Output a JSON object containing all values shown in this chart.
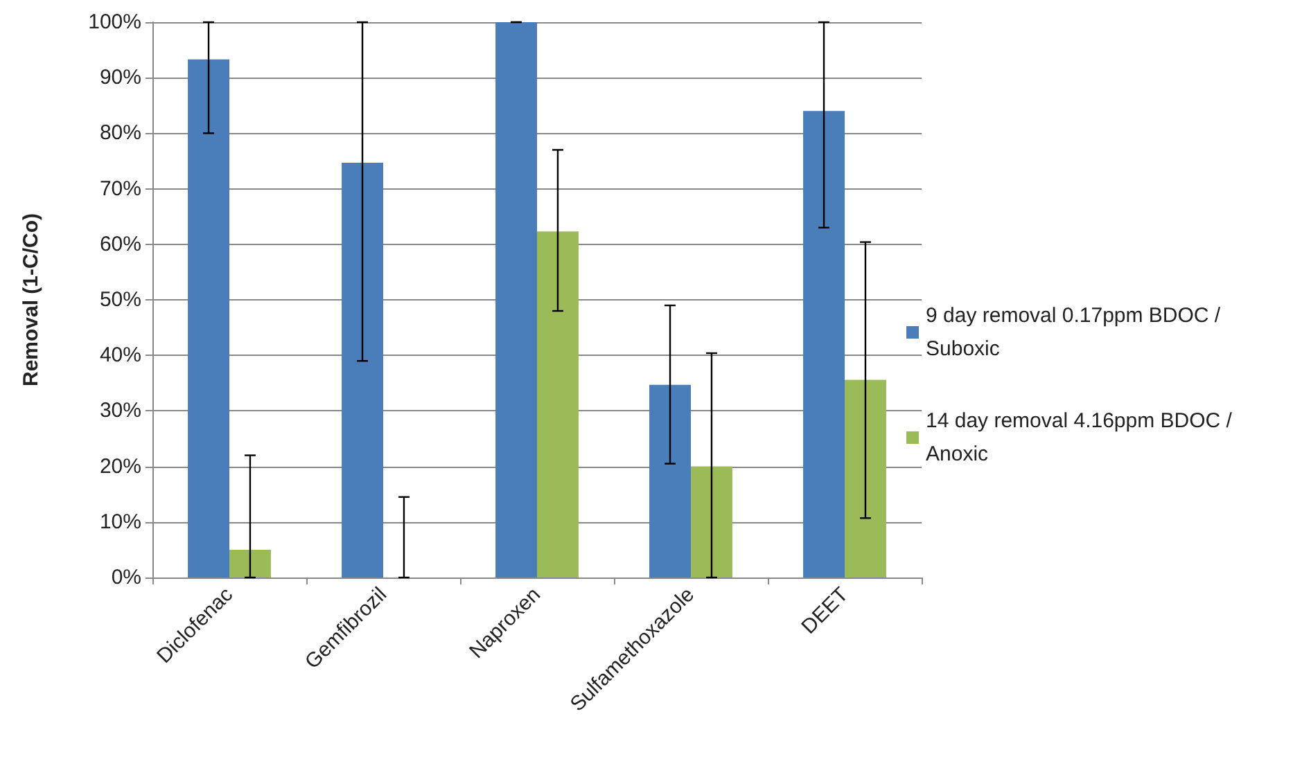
{
  "chart_data": {
    "type": "bar",
    "ylabel": "Removal (1-C/Co)",
    "categories": [
      "Diclofenac",
      "Gemfibrozil",
      "Naproxen",
      "Sulfamethoxazole",
      "DEET"
    ],
    "series": [
      {
        "name": "9 day removal 0.17ppm BDOC / Suboxic",
        "color": "#4a7ebb",
        "values": [
          93.3,
          74.7,
          100,
          34.7,
          84
        ],
        "errors": [
          [
            80,
            100
          ],
          [
            39,
            100
          ],
          [
            100,
            100
          ],
          [
            20.5,
            49
          ],
          [
            63,
            100
          ]
        ]
      },
      {
        "name": "14 day removal 4.16ppm BDOC / Anoxic",
        "color": "#9bbb59",
        "values": [
          5,
          0,
          62.3,
          20,
          35.6
        ],
        "errors": [
          [
            0,
            22
          ],
          [
            0,
            14.5
          ],
          [
            48,
            77
          ],
          [
            0,
            40.4
          ],
          [
            10.7,
            60.4
          ]
        ]
      }
    ],
    "ylim": [
      0,
      100
    ],
    "yticks": [
      {
        "value": 0,
        "label": "0%"
      },
      {
        "value": 10,
        "label": "10%"
      },
      {
        "value": 20,
        "label": "20%"
      },
      {
        "value": 30,
        "label": "30%"
      },
      {
        "value": 40,
        "label": "40%"
      },
      {
        "value": 50,
        "label": "50%"
      },
      {
        "value": 60,
        "label": "60%"
      },
      {
        "value": 70,
        "label": "70%"
      },
      {
        "value": 80,
        "label": "80%"
      },
      {
        "value": 90,
        "label": "90%"
      },
      {
        "value": 100,
        "label": "100%"
      }
    ],
    "grid": "y",
    "legend": "right"
  }
}
